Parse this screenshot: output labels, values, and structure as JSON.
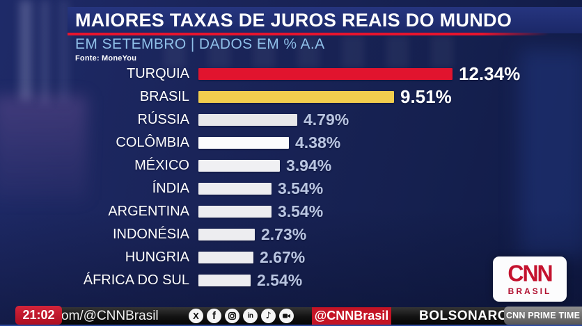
{
  "header": {
    "title": "MAIORES TAXAS DE JUROS REAIS DO MUNDO",
    "subtitle": "EM SETEMBRO | DADOS EM % A.A",
    "source": "Fonte: MoneYou"
  },
  "chart_data": {
    "type": "bar",
    "orientation": "horizontal",
    "title": "MAIORES TAXAS DE JUROS REAIS DO MUNDO",
    "subtitle": "EM SETEMBRO | DADOS EM % A.A",
    "source": "Fonte: MoneYou",
    "unit": "% a.a.",
    "categories": [
      "TURQUIA",
      "BRASIL",
      "RÚSSIA",
      "COLÔMBIA",
      "MÉXICO",
      "ÍNDIA",
      "ARGENTINA",
      "INDONÉSIA",
      "HUNGRIA",
      "ÁFRICA DO SUL"
    ],
    "values": [
      12.34,
      9.51,
      4.79,
      4.38,
      3.94,
      3.54,
      3.54,
      2.73,
      2.67,
      2.54
    ],
    "value_labels": [
      "12.34%",
      "9.51%",
      "4.79%",
      "4.38%",
      "3.94%",
      "3.54%",
      "3.54%",
      "2.73%",
      "2.67%",
      "2.54%"
    ],
    "xlim": [
      0,
      12.34
    ],
    "grid": false,
    "legend": false,
    "bar_colors": [
      "#e1142e",
      "#f2cd4e",
      "#e7e7ea",
      "#fbfbfd",
      "#f0f0f3",
      "#ededf0",
      "#ededf0",
      "#ededf0",
      "#ededf0",
      "#ededf0"
    ],
    "value_colors": [
      "#ffffff",
      "#ffffff",
      "#b9c5e1",
      "#b9c5e1",
      "#b9c5e1",
      "#b9c5e1",
      "#b9c5e1",
      "#b9c5e1",
      "#b9c5e1",
      "#b9c5e1"
    ]
  },
  "ticker": {
    "time": "21:02",
    "handle_text": "om/@CNNBrasil",
    "social_icons": [
      "x-icon",
      "facebook-icon",
      "instagram-icon",
      "linkedin-icon",
      "tiktok-icon",
      "kwai-icon"
    ],
    "channel_badge": "@CNNBrasil",
    "headline": "BOLSONARO TE",
    "program_badge": "CNN PRIME TIME"
  },
  "logo": {
    "network": "CNN",
    "region": "BRASIL"
  },
  "colors": {
    "cnn_red": "#c4122e",
    "accent_red": "#e8142d",
    "bar_gold": "#f2cd4e",
    "banner_blue": "#1e2c72",
    "subtitle_blue": "#8fbfe8",
    "value_blue": "#b9c5e1",
    "ticker_black": "#121212",
    "program_gray": "#6e6e6e"
  }
}
